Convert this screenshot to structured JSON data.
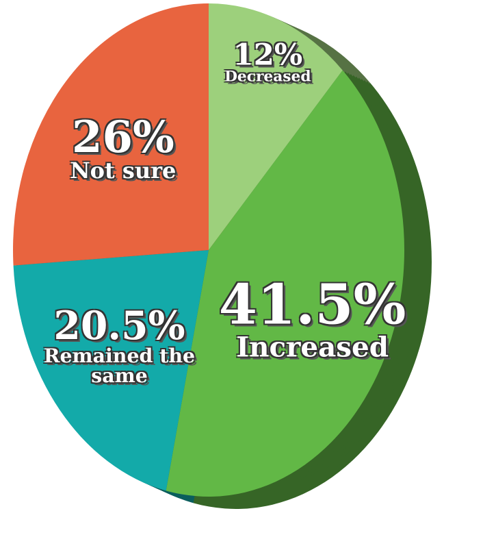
{
  "chart_data": {
    "type": "pie",
    "categories": [
      "Decreased",
      "Increased",
      "Remained the same",
      "Not sure"
    ],
    "values": [
      12,
      41.5,
      20.5,
      26
    ],
    "value_labels": [
      "12%",
      "41.5%",
      "20.5%",
      "26%"
    ],
    "colors": [
      "#9dd07c",
      "#62b846",
      "#13aaa9",
      "#e8643f"
    ]
  }
}
